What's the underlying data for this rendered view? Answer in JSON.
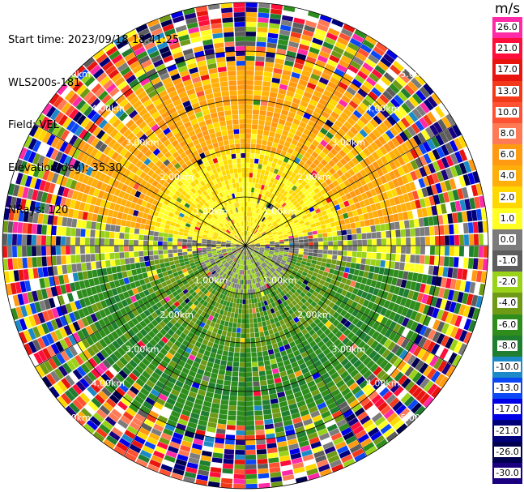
{
  "info": {
    "start_time": "Start time: 2023/09/18 18:41:25",
    "device": "WLS200s-181",
    "field": "Field: VEL",
    "elevation": "Elevation(deg): 35.30",
    "nrays": "NRays: 120"
  },
  "colorbar": {
    "unit": "m/s",
    "levels": [
      {
        "label": "26.0",
        "color": "#ff2aa6"
      },
      {
        "label": "21.0",
        "color": "#ff0d3b"
      },
      {
        "label": "17.0",
        "color": "#e8150f"
      },
      {
        "label": "13.0",
        "color": "#f23a1a"
      },
      {
        "label": "10.0",
        "color": "#ff5233"
      },
      {
        "label": "8.0",
        "color": "#ff7a55"
      },
      {
        "label": "6.0",
        "color": "#ff9a12"
      },
      {
        "label": "4.0",
        "color": "#ffae0a"
      },
      {
        "label": "2.0",
        "color": "#ffd800"
      },
      {
        "label": "1.0",
        "color": "#ffff22"
      },
      {
        "label": "0.0",
        "color": "#7c7c7c"
      },
      {
        "label": "-1.0",
        "color": "#5d5d5d"
      },
      {
        "label": "-2.0",
        "color": "#9ad21a"
      },
      {
        "label": "-4.0",
        "color": "#6f9a16"
      },
      {
        "label": "-6.0",
        "color": "#2e8d1c"
      },
      {
        "label": "-8.0",
        "color": "#1f7e30"
      },
      {
        "label": "-10.0",
        "color": "#1d8ac8"
      },
      {
        "label": "-13.0",
        "color": "#0b47f5"
      },
      {
        "label": "-17.0",
        "color": "#0000e6"
      },
      {
        "label": "-21.0",
        "color": "#00007a"
      },
      {
        "label": "-26.0",
        "color": "#00004f"
      },
      {
        "label": "-30.0",
        "color": "#1a0080"
      }
    ]
  },
  "chart_data": {
    "type": "heatmap",
    "projection": "polar PPI",
    "field": "VEL",
    "unit": "m/s",
    "nrays": 120,
    "range_rings_km": [
      1.0,
      2.0,
      3.0,
      4.0,
      5.0
    ],
    "range_ring_labels": [
      "1.00km",
      "2.00km",
      "3.00km",
      "4.00km",
      "5.00km"
    ],
    "max_range_km": 5.0,
    "spoke_interval_deg": 30,
    "pattern": {
      "inner_north_sector": "positive velocities (1 to 6 m/s) within ~3.5 km",
      "inner_south_sector": "negative velocities (-1 to -8 m/s) within ~3.5 km",
      "outer_range": "noisy mixed values beyond ~3.5 km"
    }
  }
}
